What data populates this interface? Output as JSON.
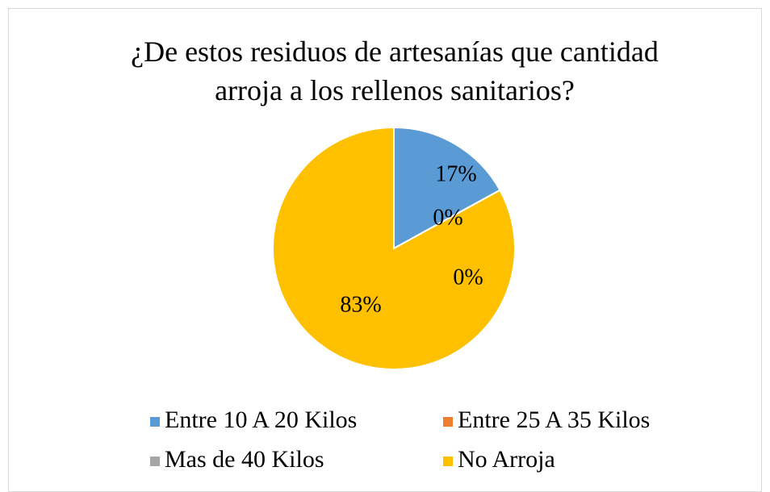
{
  "chart_data": {
    "type": "pie",
    "title": "¿De estos residuos de artesanías  que cantidad arroja  a los rellenos sanitarios?",
    "categories": [
      "Entre 10 A 20 Kilos",
      "Entre 25 A 35 Kilos",
      "Mas de 40 Kilos",
      "No Arroja"
    ],
    "values": [
      17,
      0,
      0,
      83
    ],
    "value_labels": [
      "17%",
      "0%",
      "0%",
      "83%"
    ],
    "colors": [
      "#5b9bd5",
      "#ed7d31",
      "#a5a5a5",
      "#ffc000"
    ],
    "legend": "bottom"
  }
}
